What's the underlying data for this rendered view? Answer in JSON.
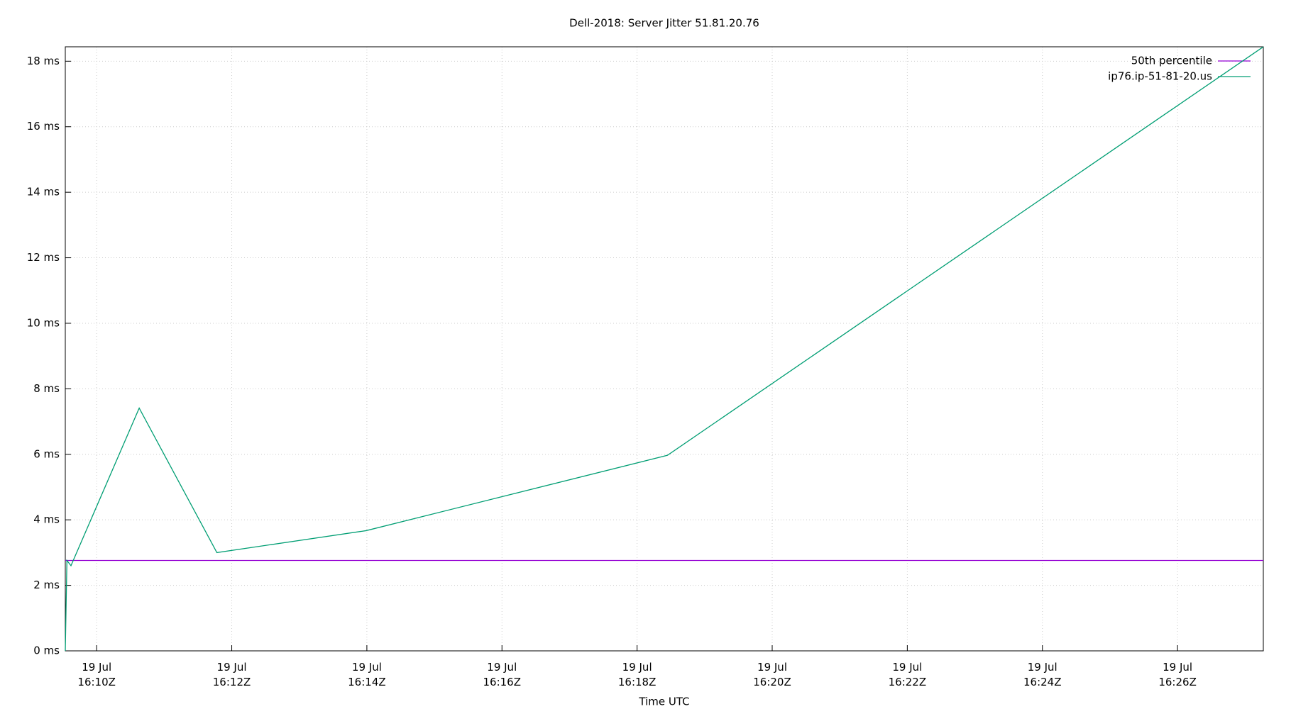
{
  "chart_data": {
    "type": "line",
    "title": "Dell-2018: Server Jitter 51.81.20.76",
    "xlabel": "Time UTC",
    "x": [
      9.536,
      9.56,
      9.62,
      10.63,
      11.78,
      13.99,
      18.45,
      27.27
    ],
    "series": [
      {
        "name": "50th percentile",
        "color": "#9400d3",
        "values": [
          2.76,
          2.76,
          2.76,
          2.76,
          2.76,
          2.76,
          2.76,
          2.76
        ]
      },
      {
        "name": "ip76.ip-51-81-20.us",
        "color": "#009e73",
        "values": [
          0,
          2.76,
          2.6,
          7.41,
          3.0,
          3.67,
          5.97,
          18.44
        ]
      }
    ],
    "xlim": [
      9.536,
      27.27
    ],
    "xticks": [
      {
        "value": 10,
        "label": "19 Jul\n16:10Z"
      },
      {
        "value": 12,
        "label": "19 Jul\n16:12Z"
      },
      {
        "value": 14,
        "label": "19 Jul\n16:14Z"
      },
      {
        "value": 16,
        "label": "19 Jul\n16:16Z"
      },
      {
        "value": 18,
        "label": "19 Jul\n16:18Z"
      },
      {
        "value": 20,
        "label": "19 Jul\n16:20Z"
      },
      {
        "value": 22,
        "label": "19 Jul\n16:22Z"
      },
      {
        "value": 24,
        "label": "19 Jul\n16:24Z"
      },
      {
        "value": 26,
        "label": "19 Jul\n16:26Z"
      }
    ],
    "ylim": [
      0,
      18.44
    ],
    "yticks": [
      {
        "value": 0,
        "label": "0 ms"
      },
      {
        "value": 2,
        "label": "2 ms"
      },
      {
        "value": 4,
        "label": "4 ms"
      },
      {
        "value": 6,
        "label": "6 ms"
      },
      {
        "value": 8,
        "label": "8 ms"
      },
      {
        "value": 10,
        "label": "10 ms"
      },
      {
        "value": 12,
        "label": "12 ms"
      },
      {
        "value": 14,
        "label": "14 ms"
      },
      {
        "value": 16,
        "label": "16 ms"
      },
      {
        "value": 18,
        "label": "18 ms"
      }
    ],
    "grid": true,
    "legend": "top-right"
  }
}
